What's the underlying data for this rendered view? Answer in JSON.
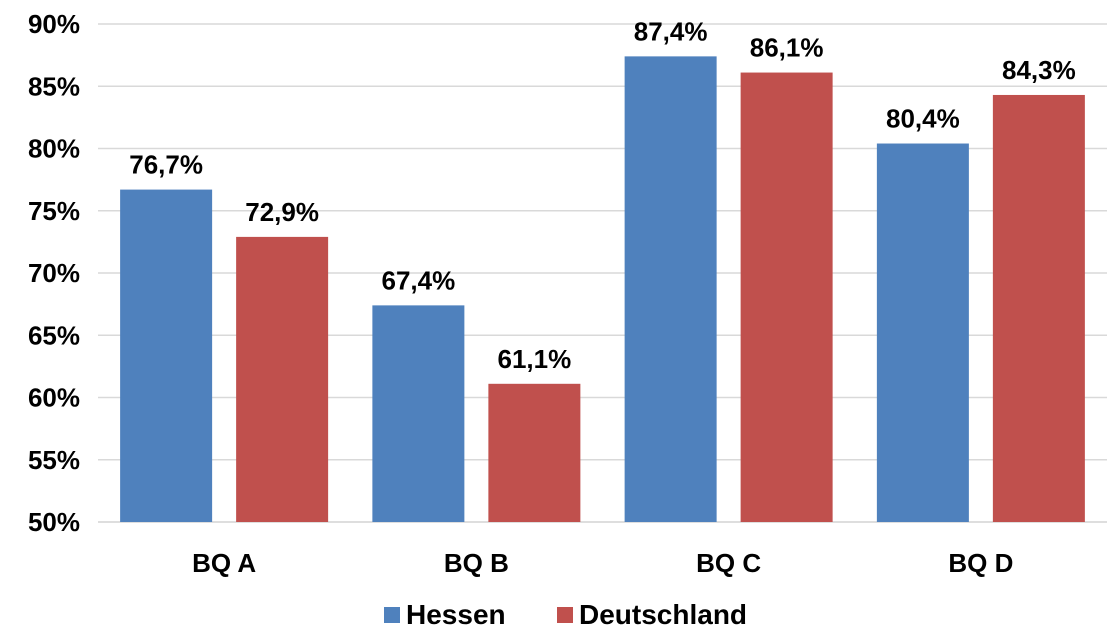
{
  "chart_data": {
    "type": "bar",
    "categories": [
      "BQ A",
      "BQ B",
      "BQ C",
      "BQ D"
    ],
    "series": [
      {
        "name": "Hessen",
        "values": [
          76.7,
          67.4,
          87.4,
          80.4
        ],
        "labels": [
          "76,7%",
          "67,4%",
          "87,4%",
          "80,4%"
        ],
        "color": "#4F81BD"
      },
      {
        "name": "Deutschland",
        "values": [
          72.9,
          61.1,
          86.1,
          84.3
        ],
        "labels": [
          "72,9%",
          "61,1%",
          "86,1%",
          "84,3%"
        ],
        "color": "#C0504D"
      }
    ],
    "ylim": [
      50,
      90
    ],
    "yticks": [
      50,
      55,
      60,
      65,
      70,
      75,
      80,
      85,
      90
    ],
    "ytick_labels": [
      "50%",
      "55%",
      "60%",
      "65%",
      "70%",
      "75%",
      "80%",
      "85%",
      "90%"
    ],
    "grid": true,
    "legend_position": "bottom",
    "title": "",
    "xlabel": "",
    "ylabel": ""
  }
}
